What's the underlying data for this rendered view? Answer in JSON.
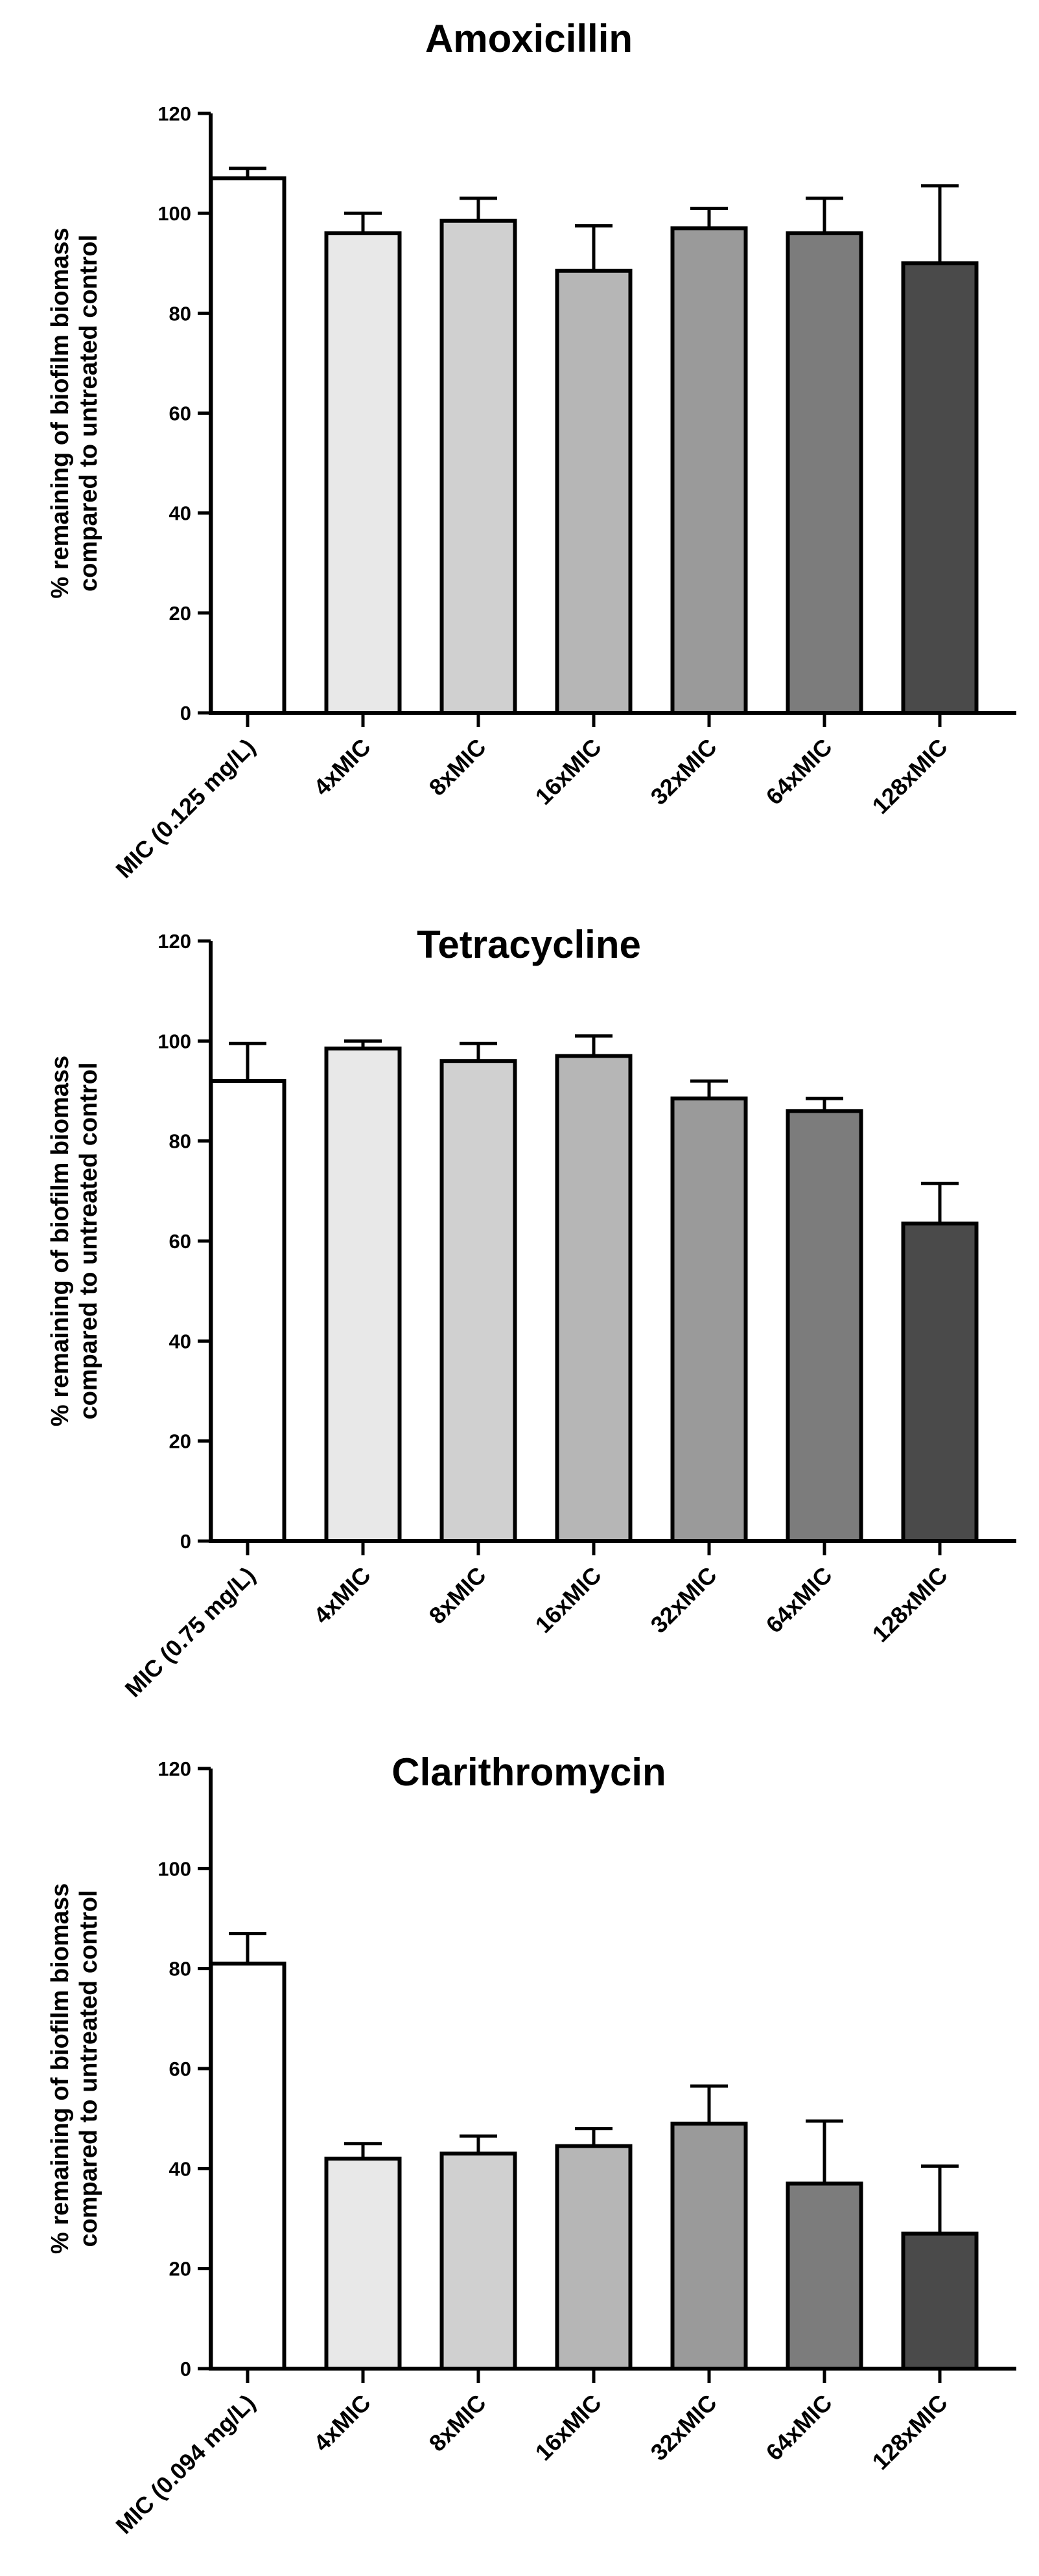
{
  "chart_data": [
    {
      "type": "bar",
      "title": "Amoxicillin",
      "ylabel_lines": [
        "% remaining of biofilm biomass",
        "compared to untreated control"
      ],
      "categories": [
        "MIC (0.125 mg/L)",
        "4xMIC",
        "8xMIC",
        "16xMIC",
        "32xMIC",
        "64xMIC",
        "128xMIC"
      ],
      "values": [
        107,
        96,
        98.5,
        88.5,
        97,
        96,
        90
      ],
      "errors": [
        2,
        4,
        4.5,
        9,
        4,
        7,
        15.5
      ],
      "bar_colors": [
        "#ffffff",
        "#e8e8e8",
        "#d0d0d0",
        "#b6b6b6",
        "#9a9a9a",
        "#7c7c7c",
        "#4a4a4a"
      ],
      "ylim": [
        0,
        120
      ],
      "yticks": [
        0,
        20,
        40,
        60,
        80,
        100,
        120
      ]
    },
    {
      "type": "bar",
      "title": "Tetracycline",
      "ylabel_lines": [
        "% remaining of biofilm biomass",
        "compared to untreated control"
      ],
      "categories": [
        "MIC (0.75 mg/L)",
        "4xMIC",
        "8xMIC",
        "16xMIC",
        "32xMIC",
        "64xMIC",
        "128xMIC"
      ],
      "values": [
        92,
        98.5,
        96,
        97,
        88.5,
        86,
        63.5
      ],
      "errors": [
        7.5,
        1.5,
        3.5,
        4,
        3.5,
        2.5,
        8
      ],
      "bar_colors": [
        "#ffffff",
        "#e8e8e8",
        "#d0d0d0",
        "#b6b6b6",
        "#9a9a9a",
        "#7c7c7c",
        "#4a4a4a"
      ],
      "ylim": [
        0,
        120
      ],
      "yticks": [
        0,
        20,
        40,
        60,
        80,
        100,
        120
      ]
    },
    {
      "type": "bar",
      "title": "Clarithromycin",
      "ylabel_lines": [
        "% remaining of biofilm biomass",
        "compared to untreated control"
      ],
      "categories": [
        "MIC (0.094 mg/L)",
        "4xMIC",
        "8xMIC",
        "16xMIC",
        "32xMIC",
        "64xMIC",
        "128xMIC"
      ],
      "values": [
        81,
        42,
        43,
        44.5,
        49,
        37,
        27
      ],
      "errors": [
        6,
        3,
        3.5,
        3.5,
        7.5,
        12.5,
        13.5
      ],
      "bar_colors": [
        "#ffffff",
        "#e8e8e8",
        "#d0d0d0",
        "#b6b6b6",
        "#9a9a9a",
        "#7c7c7c",
        "#4a4a4a"
      ],
      "ylim": [
        0,
        120
      ],
      "yticks": [
        0,
        20,
        40,
        60,
        80,
        100,
        120
      ]
    }
  ]
}
